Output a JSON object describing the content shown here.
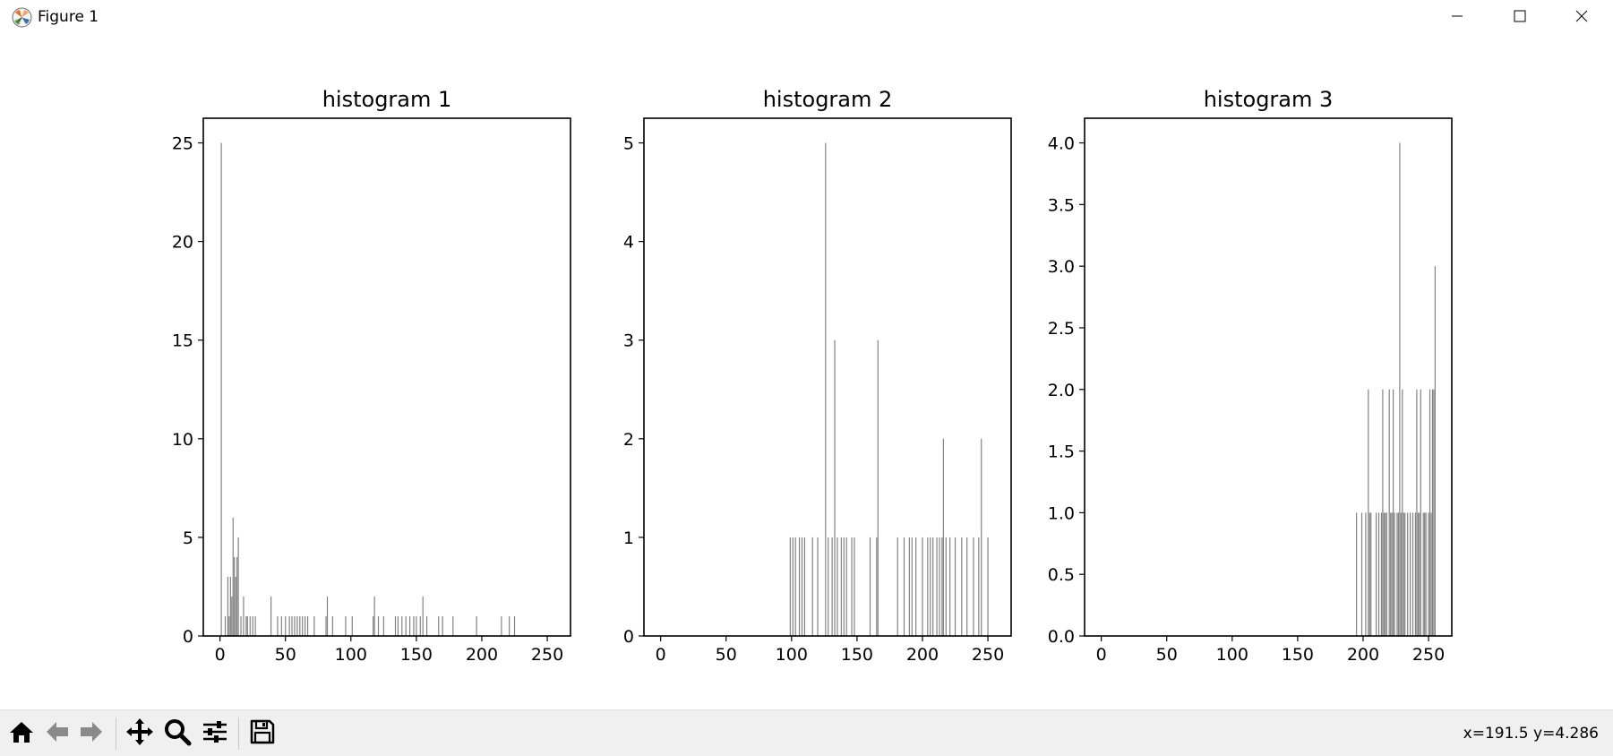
{
  "window": {
    "title": "Figure 1",
    "icon": "matplotlib-logo-icon"
  },
  "controls": {
    "minimize": "minimize-icon",
    "maximize": "maximize-icon",
    "close": "close-icon"
  },
  "toolbar": {
    "buttons": [
      "home-icon",
      "back-arrow-icon",
      "forward-arrow-icon",
      "pan-move-icon",
      "zoom-magnifier-icon",
      "configure-subplots-icon",
      "save-floppy-icon"
    ],
    "coordinates": "x=191.5 y=4.286"
  },
  "colors": {
    "bar": "#808080",
    "axes": "#000000",
    "toolbar_bg": "#f0f0f0"
  },
  "chart_data": [
    {
      "type": "bar",
      "title": "histogram 1",
      "xlabel": "",
      "ylabel": "",
      "xlim": [
        -12.75,
        267.75
      ],
      "ylim": [
        0,
        26.25
      ],
      "xticks": [
        0,
        50,
        100,
        150,
        200,
        250
      ],
      "yticks": [
        0,
        5,
        10,
        15,
        20,
        25
      ],
      "ytick_labels": [
        "0",
        "5",
        "10",
        "15",
        "20",
        "25"
      ],
      "grid": false,
      "x": [
        1,
        4,
        6,
        7,
        8,
        9,
        10,
        11,
        12,
        13,
        14,
        16,
        18,
        20,
        21,
        23,
        25,
        27,
        39,
        44,
        47,
        50,
        53,
        55,
        57,
        59,
        61,
        63,
        65,
        67,
        72,
        81,
        82,
        86,
        96,
        101,
        117,
        118,
        121,
        125,
        134,
        136,
        139,
        142,
        145,
        148,
        150,
        153,
        155,
        158,
        167,
        170,
        178,
        196,
        215,
        221,
        225
      ],
      "values": [
        25,
        1,
        3,
        1,
        3,
        2,
        6,
        4,
        3,
        4,
        5,
        1,
        2,
        1,
        1,
        1,
        1,
        1,
        2,
        1,
        1,
        1,
        1,
        1,
        1,
        1,
        1,
        1,
        1,
        1,
        1,
        1,
        2,
        1,
        1,
        1,
        1,
        2,
        1,
        1,
        1,
        1,
        1,
        1,
        1,
        1,
        1,
        1,
        2,
        1,
        1,
        1,
        1,
        1,
        1,
        1,
        1
      ]
    },
    {
      "type": "bar",
      "title": "histogram 2",
      "xlabel": "",
      "ylabel": "",
      "xlim": [
        -12.75,
        267.75
      ],
      "ylim": [
        0,
        5.25
      ],
      "xticks": [
        0,
        50,
        100,
        150,
        200,
        250
      ],
      "yticks": [
        0,
        1,
        2,
        3,
        4,
        5
      ],
      "ytick_labels": [
        "0",
        "1",
        "2",
        "3",
        "4",
        "5"
      ],
      "grid": false,
      "x": [
        99,
        101,
        103,
        106,
        108,
        110,
        116,
        120,
        126,
        128,
        131,
        133,
        135,
        138,
        140,
        142,
        146,
        148,
        160,
        165,
        166,
        181,
        186,
        190,
        192,
        195,
        200,
        204,
        206,
        208,
        211,
        213,
        215,
        216,
        218,
        221,
        225,
        230,
        234,
        239,
        243,
        245,
        250
      ],
      "values": [
        1,
        1,
        1,
        1,
        1,
        1,
        1,
        1,
        5,
        1,
        1,
        3,
        1,
        1,
        1,
        1,
        1,
        1,
        1,
        1,
        3,
        1,
        1,
        1,
        1,
        1,
        1,
        1,
        1,
        1,
        1,
        1,
        1,
        2,
        1,
        1,
        1,
        1,
        1,
        1,
        1,
        2,
        1
      ]
    },
    {
      "type": "bar",
      "title": "histogram 3",
      "xlabel": "",
      "ylabel": "",
      "xlim": [
        -12.75,
        267.75
      ],
      "ylim": [
        0,
        4.2
      ],
      "xticks": [
        0,
        50,
        100,
        150,
        200,
        250
      ],
      "yticks": [
        0,
        0.5,
        1,
        1.5,
        2,
        2.5,
        3,
        3.5,
        4
      ],
      "ytick_labels": [
        "0.0",
        "0.5",
        "1.0",
        "1.5",
        "2.0",
        "2.5",
        "3.0",
        "3.5",
        "4.0"
      ],
      "grid": false,
      "x": [
        195,
        199,
        202,
        204,
        205,
        206,
        210,
        212,
        214,
        215,
        216,
        217,
        218,
        220,
        221,
        222,
        223,
        224,
        226,
        227,
        228,
        229,
        230,
        231,
        232,
        234,
        236,
        238,
        240,
        241,
        242,
        243,
        244,
        246,
        247,
        248,
        250,
        251,
        252,
        253,
        254,
        255
      ],
      "values": [
        1,
        1,
        1,
        2,
        1,
        1,
        1,
        1,
        1,
        2,
        1,
        1,
        1,
        2,
        1,
        1,
        2,
        1,
        1,
        1,
        4,
        1,
        2,
        1,
        1,
        1,
        1,
        1,
        1,
        2,
        1,
        1,
        2,
        1,
        1,
        1,
        1,
        2,
        1,
        2,
        2,
        3
      ]
    }
  ]
}
